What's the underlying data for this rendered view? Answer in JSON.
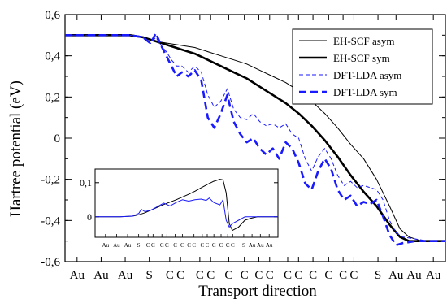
{
  "chart_data": [
    {
      "type": "line",
      "xlabel": "Transport direction",
      "ylabel": "Hartree potential (eV)",
      "ylim": [
        -0.6,
        0.6
      ],
      "xlim": [
        0,
        29.3
      ],
      "yticks": [
        -0.6,
        -0.4,
        -0.2,
        0,
        0.2,
        0.4,
        0.6
      ],
      "ytick_labels": [
        "-0,6",
        "-0,4",
        "-0,2",
        "0",
        "0,2",
        "0,4",
        "0,6"
      ],
      "categories": [
        "Au",
        "Au",
        "Au",
        "S",
        "C",
        "C",
        "C",
        "C",
        "C",
        "C",
        "C",
        "C",
        "C",
        "C",
        "C",
        "C",
        "C",
        "C",
        "S",
        "Au",
        "Au",
        "Au"
      ],
      "category_x": [
        1,
        3,
        5,
        7,
        8.7,
        9.6,
        11.2,
        12.1,
        13.6,
        14.9,
        16.1,
        17,
        18.5,
        19.4,
        20.6,
        21.9,
        23.1,
        24,
        26,
        27.5,
        29,
        30.6
      ],
      "grid": false,
      "legend_position": "top-right",
      "series": [
        {
          "name": "EH-SCF asym",
          "color": "#000000",
          "style": "solid",
          "width": "thin",
          "x": [
            0,
            5,
            6,
            7,
            8,
            9,
            10,
            11,
            12,
            13,
            14,
            15,
            16,
            17,
            18,
            19,
            20,
            21,
            22,
            23,
            24,
            25,
            25.8,
            26.5,
            27.5,
            28.5,
            29.3
          ],
          "y": [
            0.5,
            0.5,
            0.49,
            0.47,
            0.46,
            0.45,
            0.44,
            0.42,
            0.4,
            0.38,
            0.36,
            0.33,
            0.3,
            0.27,
            0.23,
            0.18,
            0.12,
            0.05,
            -0.03,
            -0.1,
            -0.2,
            -0.33,
            -0.44,
            -0.48,
            -0.5,
            -0.5,
            -0.5
          ]
        },
        {
          "name": "EH-SCF sym",
          "color": "#000000",
          "style": "solid",
          "width": "thick",
          "x": [
            0,
            5,
            6,
            7,
            8,
            9,
            10,
            11,
            12,
            13,
            14,
            15,
            16,
            17,
            18,
            19,
            20,
            21,
            22,
            23,
            24,
            25,
            25.8,
            26.5,
            27.5,
            28.5,
            29.3
          ],
          "y": [
            0.5,
            0.5,
            0.49,
            0.47,
            0.45,
            0.43,
            0.41,
            0.38,
            0.35,
            0.32,
            0.29,
            0.25,
            0.21,
            0.17,
            0.12,
            0.06,
            -0.01,
            -0.09,
            -0.18,
            -0.26,
            -0.33,
            -0.42,
            -0.48,
            -0.5,
            -0.5,
            -0.5,
            -0.5
          ]
        },
        {
          "name": "DFT-LDA asym",
          "color": "#1a1aff",
          "style": "dashed",
          "width": "thin",
          "x": [
            0,
            5,
            6,
            6.6,
            7,
            7.4,
            7.8,
            8.2,
            8.6,
            9,
            9.5,
            10,
            10.5,
            11,
            11.5,
            12,
            12.5,
            13,
            13.5,
            14,
            14.5,
            15,
            15.5,
            16,
            16.5,
            17,
            17.5,
            18,
            18.5,
            19,
            19.5,
            20,
            20.5,
            21,
            21.5,
            22,
            22.5,
            23,
            23.5,
            24,
            24.5,
            25,
            25.5,
            26,
            27,
            28,
            29.3
          ],
          "y": [
            0.5,
            0.5,
            0.49,
            0.46,
            0.49,
            0.45,
            0.42,
            0.38,
            0.35,
            0.35,
            0.32,
            0.35,
            0.32,
            0.21,
            0.15,
            0.18,
            0.24,
            0.14,
            0.1,
            0.09,
            0.12,
            0.08,
            0.06,
            0.07,
            0.05,
            0.07,
            0.02,
            0.0,
            -0.1,
            -0.16,
            -0.09,
            -0.05,
            -0.1,
            -0.18,
            -0.23,
            -0.21,
            -0.24,
            -0.23,
            -0.24,
            -0.25,
            -0.3,
            -0.4,
            -0.46,
            -0.48,
            -0.49,
            -0.5,
            -0.5
          ]
        },
        {
          "name": "DFT-LDA sym",
          "color": "#1a1aff",
          "style": "dashed",
          "width": "thick",
          "x": [
            0,
            5,
            6,
            6.6,
            7,
            7.4,
            7.8,
            8.2,
            8.6,
            9,
            9.5,
            10,
            10.5,
            11,
            11.5,
            12,
            12.5,
            13,
            13.5,
            14,
            14.5,
            15,
            15.5,
            16,
            16.5,
            17,
            17.5,
            18,
            18.5,
            19,
            19.5,
            20,
            20.5,
            21,
            21.5,
            22,
            22.5,
            23,
            23.5,
            24,
            24.5,
            25,
            25.5,
            26,
            27,
            28,
            29.3
          ],
          "y": [
            0.5,
            0.5,
            0.49,
            0.46,
            0.51,
            0.45,
            0.4,
            0.35,
            0.3,
            0.32,
            0.3,
            0.33,
            0.28,
            0.1,
            0.05,
            0.12,
            0.21,
            0.08,
            0.02,
            -0.02,
            0.0,
            -0.05,
            -0.08,
            -0.05,
            -0.1,
            -0.02,
            -0.05,
            -0.12,
            -0.22,
            -0.25,
            -0.16,
            -0.1,
            -0.15,
            -0.25,
            -0.3,
            -0.28,
            -0.33,
            -0.31,
            -0.32,
            -0.3,
            -0.38,
            -0.47,
            -0.52,
            -0.51,
            -0.5,
            -0.5,
            -0.5
          ]
        }
      ],
      "legend": [
        {
          "label": "EH-SCF asym",
          "color": "#000000",
          "style": "solid",
          "width": "thin"
        },
        {
          "label": "EH-SCF sym",
          "color": "#000000",
          "style": "solid",
          "width": "thick"
        },
        {
          "label": "DFT-LDA asym",
          "color": "#1a1aff",
          "style": "dashed",
          "width": "thin"
        },
        {
          "label": "DFT-LDA sym",
          "color": "#1a1aff",
          "style": "dashed",
          "width": "thick"
        }
      ]
    },
    {
      "type": "line",
      "role": "inset",
      "ylim": [
        -0.06,
        0.14
      ],
      "xlim": [
        0,
        29.3
      ],
      "yticks": [
        0,
        0.1
      ],
      "ytick_labels": [
        "0",
        "0,1"
      ],
      "categories": [
        "Au",
        "Au",
        "Au",
        "S",
        "C",
        "C",
        "C",
        "C",
        "C",
        "C",
        "C",
        "C",
        "C",
        "C",
        "C",
        "C",
        "C",
        "C",
        "S",
        "Au",
        "Au",
        "Au"
      ],
      "series": [
        {
          "name": "EH-SCF",
          "color": "#000000",
          "style": "solid",
          "x": [
            0,
            4,
            6,
            7,
            8,
            9,
            10,
            11,
            12,
            13,
            14,
            15,
            16,
            17,
            18,
            19,
            20,
            20.5,
            21,
            21.5,
            22,
            23,
            24,
            25,
            26,
            27,
            29.3
          ],
          "y": [
            0,
            0,
            0.002,
            0.006,
            0.012,
            0.02,
            0.028,
            0.036,
            0.043,
            0.05,
            0.058,
            0.066,
            0.075,
            0.085,
            0.095,
            0.104,
            0.11,
            0.108,
            0.07,
            -0.02,
            -0.04,
            -0.03,
            -0.01,
            -0.004,
            0,
            0,
            0
          ]
        },
        {
          "name": "DFT-LDA",
          "color": "#1a1aff",
          "style": "solid",
          "x": [
            0,
            4,
            6,
            7,
            7.4,
            8,
            9,
            10,
            11,
            12,
            13,
            14,
            15,
            16,
            17,
            17.8,
            18.3,
            19,
            20,
            20.5,
            21,
            21.5,
            22,
            23,
            24,
            26,
            27,
            29.3
          ],
          "y": [
            0,
            0,
            0.002,
            0.01,
            0.022,
            0.015,
            0.02,
            0.03,
            0.04,
            0.032,
            0.042,
            0.05,
            0.046,
            0.05,
            0.052,
            0.048,
            0.055,
            0.042,
            0.035,
            0.05,
            -0.01,
            -0.03,
            -0.02,
            -0.01,
            0,
            0,
            0,
            0
          ]
        }
      ]
    }
  ]
}
